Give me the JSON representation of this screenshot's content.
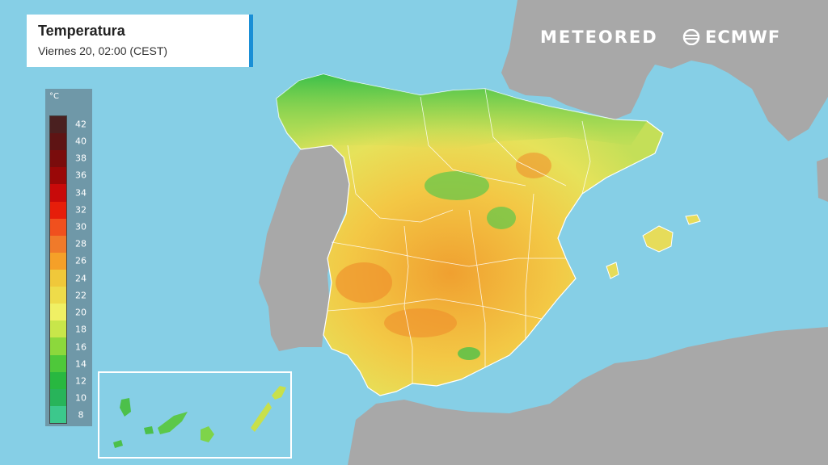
{
  "title": {
    "main": "Temperatura",
    "subtitle": "Viernes 20, 02:00 (CEST)",
    "accent_color": "#1a8fd6"
  },
  "branding": {
    "meteored": "METEORED",
    "ecmwf": "ECMWF",
    "ecmwf_icon": "ecmwf-logo-icon"
  },
  "legend": {
    "unit": "°C",
    "labels": [
      "42",
      "40",
      "38",
      "36",
      "34",
      "32",
      "30",
      "28",
      "26",
      "24",
      "22",
      "20",
      "18",
      "16",
      "14",
      "12",
      "10",
      "8"
    ],
    "colors": [
      "#4a2020",
      "#5e1414",
      "#7a0c0c",
      "#9a0808",
      "#c80a0a",
      "#e61e0a",
      "#f0501e",
      "#f07a2a",
      "#f5a028",
      "#f0c83a",
      "#eedc4a",
      "#f0f064",
      "#c8e64a",
      "#8cd83c",
      "#4ec83a",
      "#28b840",
      "#28b45a",
      "#3cc88c"
    ]
  },
  "colors": {
    "sea": "#86cfe6",
    "land_other": "#a8a8a8",
    "cool_green": "#3cc04a",
    "mild_yellow": "#e8e860",
    "warm_orange": "#f0a030"
  }
}
